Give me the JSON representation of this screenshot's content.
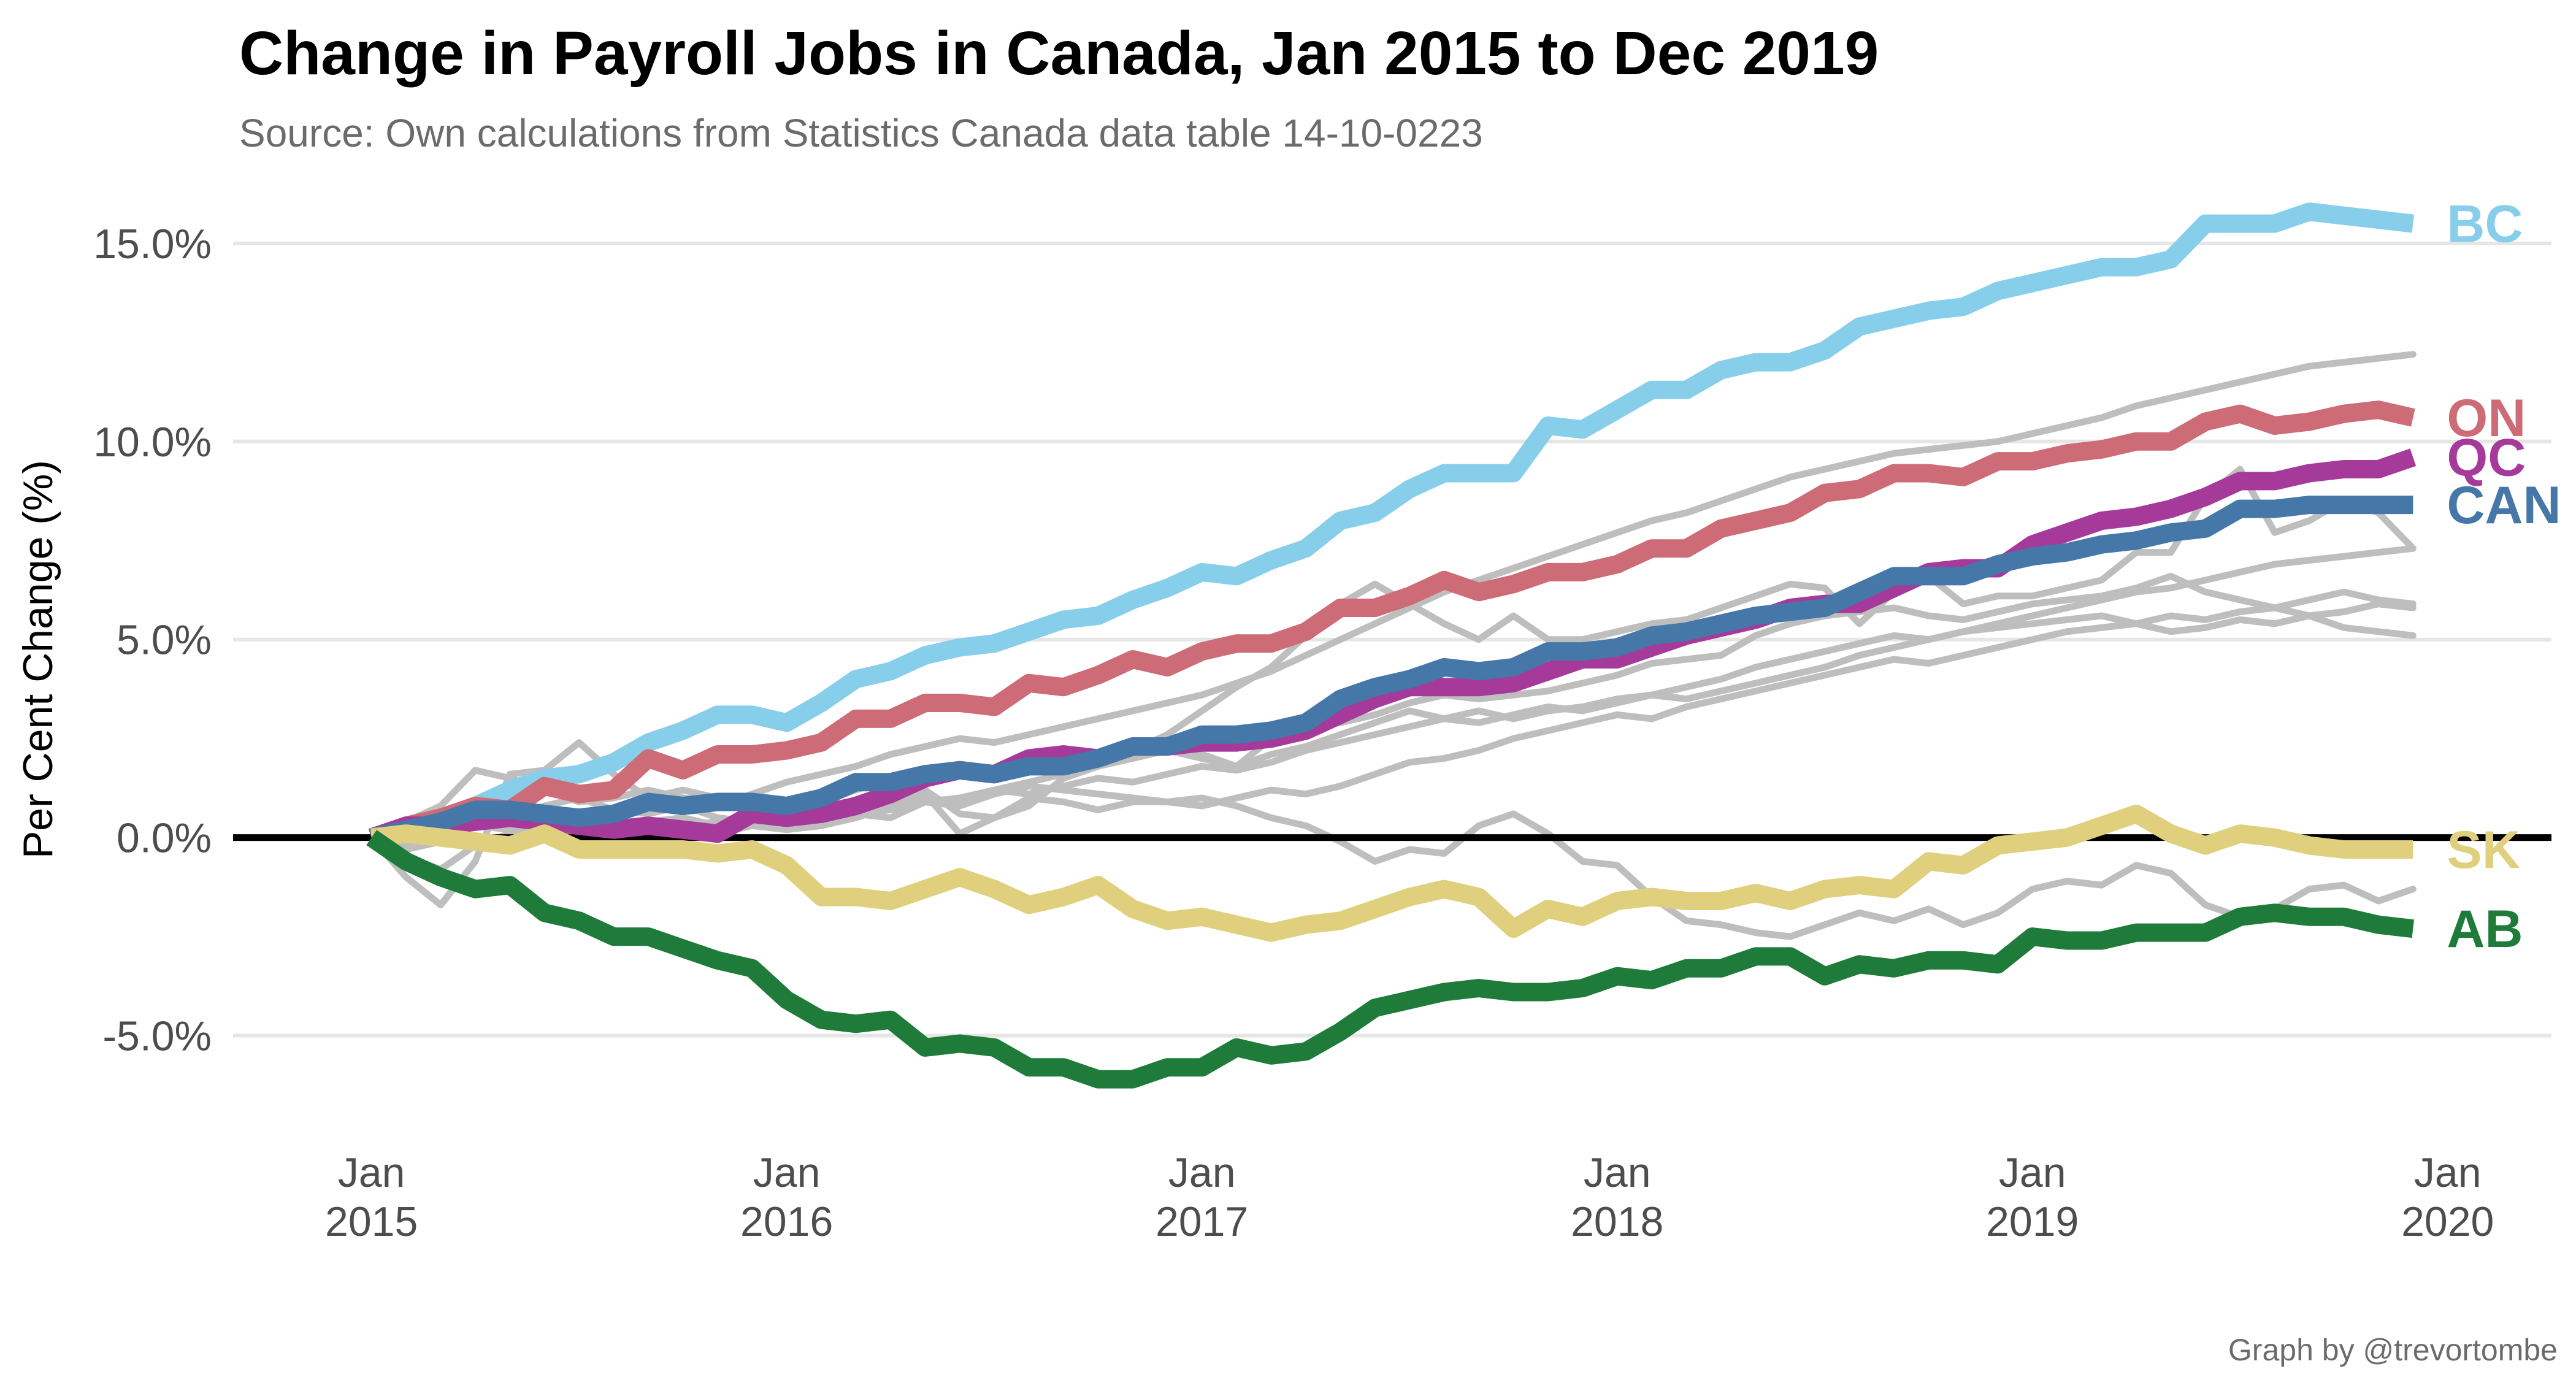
{
  "chart_data": {
    "type": "line",
    "title": "Change in Payroll Jobs in Canada, Jan 2015 to Dec 2019",
    "subtitle": "Source: Own calculations from Statistics Canada data table 14-10-0223",
    "caption": "Graph by @trevortombe",
    "ylabel": "Per Cent Change (%)",
    "xlabel": "",
    "ylim": [
      -7.5,
      16.5
    ],
    "yticks": [
      15,
      10,
      5,
      0,
      -5
    ],
    "ytick_labels": [
      "15.0%",
      "10.0%",
      "5.0%",
      "0.0%",
      "-5.0%"
    ],
    "xlim": [
      -4,
      63
    ],
    "xticks": [
      {
        "month": 0,
        "label": [
          "Jan",
          "2015"
        ]
      },
      {
        "month": 12,
        "label": [
          "Jan",
          "2016"
        ]
      },
      {
        "month": 24,
        "label": [
          "Jan",
          "2017"
        ]
      },
      {
        "month": 36,
        "label": [
          "Jan",
          "2018"
        ]
      },
      {
        "month": 48,
        "label": [
          "Jan",
          "2019"
        ]
      },
      {
        "month": 60,
        "label": [
          "Jan",
          "2020"
        ]
      }
    ],
    "x_start": "2015-01",
    "x_end": "2019-12",
    "zero_line": true,
    "grid": true,
    "background_series_color": "#bebebe",
    "highlighted_series": [
      {
        "name": "BC",
        "color": "#87CEEB",
        "values": [
          0,
          0.2,
          0.4,
          0.8,
          1.2,
          1.5,
          1.6,
          1.9,
          2.4,
          2.7,
          3.1,
          3.1,
          2.9,
          3.4,
          4.0,
          4.2,
          4.6,
          4.8,
          4.9,
          5.2,
          5.5,
          5.6,
          6.0,
          6.3,
          6.7,
          6.6,
          7.0,
          7.3,
          8.0,
          8.2,
          8.8,
          9.2,
          9.2,
          9.2,
          10.4,
          10.3,
          10.8,
          11.3,
          11.3,
          11.8,
          12.0,
          12.0,
          12.3,
          12.9,
          13.1,
          13.3,
          13.4,
          13.8,
          14.0,
          14.2,
          14.4,
          14.4,
          14.6,
          15.5,
          15.5,
          15.5,
          15.8,
          15.7,
          15.6,
          15.5
        ]
      },
      {
        "name": "ON",
        "color": "#CD6B76",
        "values": [
          0,
          0.3,
          0.5,
          0.8,
          0.7,
          1.3,
          1.1,
          1.2,
          2.0,
          1.7,
          2.1,
          2.1,
          2.2,
          2.4,
          3.0,
          3.0,
          3.4,
          3.4,
          3.3,
          3.9,
          3.8,
          4.1,
          4.5,
          4.3,
          4.7,
          4.9,
          4.9,
          5.2,
          5.8,
          5.8,
          6.1,
          6.5,
          6.2,
          6.4,
          6.7,
          6.7,
          6.9,
          7.3,
          7.3,
          7.8,
          8.0,
          8.2,
          8.7,
          8.8,
          9.2,
          9.2,
          9.1,
          9.5,
          9.5,
          9.7,
          9.8,
          10.0,
          10.0,
          10.5,
          10.7,
          10.4,
          10.5,
          10.7,
          10.8,
          10.6
        ]
      },
      {
        "name": "QC",
        "color": "#A53A9A",
        "values": [
          0,
          0.3,
          0.3,
          0.4,
          0.5,
          0.4,
          0.3,
          0.2,
          0.3,
          0.2,
          0.1,
          0.6,
          0.5,
          0.6,
          0.8,
          1.1,
          1.5,
          1.7,
          1.6,
          2.0,
          2.1,
          2.0,
          2.3,
          2.3,
          2.4,
          2.4,
          2.5,
          2.7,
          3.1,
          3.5,
          3.8,
          3.8,
          3.8,
          3.9,
          4.2,
          4.5,
          4.5,
          4.8,
          5.1,
          5.3,
          5.5,
          5.8,
          5.9,
          5.9,
          6.3,
          6.7,
          6.8,
          6.8,
          7.4,
          7.7,
          8.0,
          8.1,
          8.3,
          8.6,
          9.0,
          9.0,
          9.2,
          9.3,
          9.3,
          9.6
        ]
      },
      {
        "name": "CAN",
        "color": "#4577A8",
        "values": [
          0,
          0.2,
          0.4,
          0.7,
          0.7,
          0.6,
          0.5,
          0.6,
          0.9,
          0.8,
          0.9,
          0.9,
          0.8,
          1.0,
          1.4,
          1.4,
          1.6,
          1.7,
          1.6,
          1.8,
          1.8,
          2.0,
          2.3,
          2.3,
          2.6,
          2.6,
          2.7,
          2.9,
          3.5,
          3.8,
          4.0,
          4.3,
          4.2,
          4.3,
          4.7,
          4.7,
          4.8,
          5.1,
          5.2,
          5.4,
          5.6,
          5.7,
          5.8,
          6.2,
          6.6,
          6.6,
          6.6,
          6.9,
          7.1,
          7.2,
          7.4,
          7.5,
          7.7,
          7.8,
          8.3,
          8.3,
          8.4,
          8.4,
          8.4,
          8.4
        ]
      },
      {
        "name": "SK",
        "color": "#E0D07E",
        "values": [
          0,
          0.1,
          0.0,
          -0.1,
          -0.2,
          0.1,
          -0.3,
          -0.3,
          -0.3,
          -0.3,
          -0.4,
          -0.3,
          -0.7,
          -1.5,
          -1.5,
          -1.6,
          -1.3,
          -1.0,
          -1.3,
          -1.7,
          -1.5,
          -1.2,
          -1.8,
          -2.1,
          -2.0,
          -2.2,
          -2.4,
          -2.2,
          -2.1,
          -1.8,
          -1.5,
          -1.3,
          -1.5,
          -2.3,
          -1.8,
          -2.0,
          -1.6,
          -1.5,
          -1.6,
          -1.6,
          -1.4,
          -1.6,
          -1.3,
          -1.2,
          -1.3,
          -0.6,
          -0.7,
          -0.2,
          -0.1,
          0.0,
          0.3,
          0.6,
          0.1,
          -0.2,
          0.1,
          0.0,
          -0.2,
          -0.3,
          -0.3,
          -0.3
        ]
      },
      {
        "name": "AB",
        "color": "#1E7B3A",
        "values": [
          0,
          -0.6,
          -1.0,
          -1.3,
          -1.2,
          -1.9,
          -2.1,
          -2.5,
          -2.5,
          -2.8,
          -3.1,
          -3.3,
          -4.1,
          -4.6,
          -4.7,
          -4.6,
          -5.3,
          -5.2,
          -5.3,
          -5.8,
          -5.8,
          -6.1,
          -6.1,
          -5.8,
          -5.8,
          -5.3,
          -5.5,
          -5.4,
          -4.9,
          -4.3,
          -4.1,
          -3.9,
          -3.8,
          -3.9,
          -3.9,
          -3.8,
          -3.5,
          -3.6,
          -3.3,
          -3.3,
          -3.0,
          -3.0,
          -3.5,
          -3.2,
          -3.3,
          -3.1,
          -3.1,
          -3.2,
          -2.5,
          -2.6,
          -2.6,
          -2.4,
          -2.4,
          -2.4,
          -2.0,
          -1.9,
          -2.0,
          -2.0,
          -2.2,
          -2.3
        ]
      }
    ],
    "background_series": [
      {
        "values": [
          0,
          -1.0,
          -1.7,
          -0.6,
          1.6,
          1.7,
          2.4,
          1.6,
          1.0,
          1.2,
          1.0,
          0.8,
          0.7,
          0.6,
          0.5,
          1.0,
          1.1,
          0.1,
          0.5,
          1.0,
          0.9,
          0.7,
          0.9,
          0.9,
          1.0,
          0.8,
          0.5,
          0.3,
          -0.1,
          -0.6,
          -0.3,
          -0.4,
          0.3,
          0.6,
          0.1,
          -0.6,
          -0.7,
          -1.5,
          -2.1,
          -2.2,
          -2.4,
          -2.5,
          -2.2,
          -1.9,
          -2.1,
          -1.8,
          -2.2,
          -1.9,
          -1.3,
          -1.1,
          -1.2,
          -0.7,
          -0.9,
          -1.7,
          -2.0,
          -1.8,
          -1.3,
          -1.2,
          -1.6,
          -1.3
        ]
      },
      {
        "values": [
          0,
          -0.3,
          -0.1,
          0.5,
          0.3,
          0.2,
          0.5,
          0.6,
          0.2,
          0.3,
          0.4,
          0.5,
          0.6,
          0.3,
          0.5,
          0.8,
          1.2,
          0.6,
          0.5,
          0.8,
          1.5,
          1.8,
          2.2,
          2.6,
          3.2,
          3.8,
          4.3,
          5.1,
          5.9,
          6.4,
          5.9,
          5.4,
          5.0,
          5.6,
          5.0,
          5.0,
          5.2,
          5.4,
          5.5,
          5.8,
          6.1,
          6.4,
          6.3,
          5.4,
          6.2,
          6.6,
          5.9,
          6.1,
          6.1,
          6.3,
          6.5,
          7.2,
          7.2,
          8.6,
          9.3,
          7.7,
          8.0,
          8.5,
          8.2,
          7.3
        ]
      },
      {
        "values": [
          0,
          -0.2,
          0.1,
          0.3,
          0.2,
          0.4,
          0.3,
          0.6,
          0.9,
          1.0,
          0.9,
          1.0,
          0.8,
          0.9,
          1.2,
          1.5,
          1.7,
          1.8,
          1.7,
          1.8,
          1.9,
          2.0,
          2.4,
          2.3,
          2.1,
          1.8,
          2.5,
          2.8,
          2.9,
          3.1,
          3.4,
          3.6,
          3.5,
          3.6,
          3.7,
          3.9,
          4.1,
          4.4,
          4.5,
          4.6,
          5.1,
          5.4,
          5.6,
          5.7,
          5.8,
          5.6,
          5.5,
          5.7,
          5.9,
          6.0,
          6.1,
          6.3,
          6.6,
          6.2,
          6.0,
          5.8,
          6.0,
          6.2,
          6.0,
          5.9
        ]
      },
      {
        "values": [
          0,
          -0.5,
          -0.8,
          -0.2,
          0.1,
          0.3,
          0.1,
          0.2,
          0.4,
          0.5,
          0.3,
          0.4,
          0.5,
          0.6,
          0.7,
          0.9,
          1.0,
          0.9,
          1.2,
          1.4,
          1.6,
          1.8,
          2.0,
          2.2,
          2.0,
          1.8,
          2.1,
          2.3,
          2.6,
          2.9,
          3.2,
          3.0,
          3.2,
          3.0,
          3.2,
          3.3,
          3.5,
          3.6,
          3.8,
          4.0,
          4.3,
          4.5,
          4.7,
          4.9,
          5.1,
          5.0,
          5.2,
          5.3,
          5.4,
          5.5,
          5.6,
          5.4,
          5.2,
          5.3,
          5.5,
          5.4,
          5.6,
          5.3,
          5.2,
          5.1
        ]
      },
      {
        "values": [
          0,
          0.3,
          0.4,
          0.7,
          0.5,
          0.8,
          1.0,
          0.7,
          0.6,
          0.8,
          0.5,
          0.4,
          0.2,
          0.3,
          0.6,
          0.5,
          0.9,
          0.8,
          1.1,
          1.3,
          1.2,
          1.1,
          1.0,
          0.9,
          0.8,
          1.0,
          1.2,
          1.1,
          1.3,
          1.6,
          1.9,
          2.0,
          2.2,
          2.5,
          2.7,
          2.9,
          3.1,
          3.0,
          3.3,
          3.5,
          3.7,
          3.9,
          4.1,
          4.3,
          4.5,
          4.4,
          4.6,
          4.8,
          5.0,
          5.2,
          5.3,
          5.4,
          5.6,
          5.5,
          5.7,
          5.8,
          5.6,
          5.7,
          5.9,
          5.8
        ]
      },
      {
        "values": [
          0,
          0.1,
          0.2,
          0.0,
          -0.2,
          0.1,
          0.3,
          0.2,
          0.4,
          0.2,
          0.1,
          0.3,
          0.2,
          0.4,
          0.6,
          0.7,
          0.9,
          1.0,
          1.2,
          1.1,
          1.3,
          1.5,
          1.4,
          1.6,
          1.8,
          1.7,
          1.9,
          2.2,
          2.4,
          2.6,
          2.8,
          3.0,
          2.9,
          3.1,
          3.3,
          3.2,
          3.4,
          3.6,
          3.5,
          3.7,
          3.9,
          4.1,
          4.3,
          4.6,
          4.8,
          5.0,
          5.2,
          5.4,
          5.6,
          5.8,
          6.0,
          6.2,
          6.3,
          6.5,
          6.7,
          6.9,
          7.0,
          7.1,
          7.2,
          7.3
        ]
      },
      {
        "values": [
          0,
          0.4,
          0.8,
          1.7,
          1.5,
          1.2,
          0.9,
          1.0,
          1.2,
          1.0,
          0.8,
          1.1,
          1.4,
          1.6,
          1.8,
          2.1,
          2.3,
          2.5,
          2.4,
          2.6,
          2.8,
          3.0,
          3.2,
          3.4,
          3.6,
          3.9,
          4.2,
          4.6,
          5.0,
          5.4,
          5.8,
          6.2,
          6.5,
          6.8,
          7.1,
          7.4,
          7.7,
          8.0,
          8.2,
          8.5,
          8.8,
          9.1,
          9.3,
          9.5,
          9.7,
          9.8,
          9.9,
          10.0,
          10.2,
          10.4,
          10.6,
          10.9,
          11.1,
          11.3,
          11.5,
          11.7,
          11.9,
          12.0,
          12.1,
          12.2
        ]
      }
    ]
  }
}
